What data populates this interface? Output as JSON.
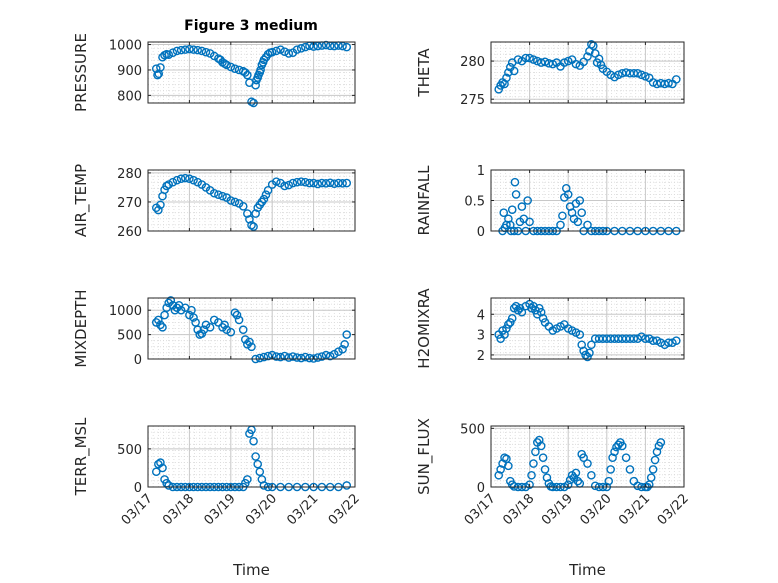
{
  "figure": {
    "title": "Figure 3 medium"
  },
  "colors": {
    "marker": "#0072BD",
    "axis": "#262626",
    "grid": "#d9d9d9"
  },
  "x_axis": {
    "label": "Time",
    "tick_labels": [
      "03/17",
      "03/18",
      "03/19",
      "03/20",
      "03/21",
      "03/22"
    ],
    "range": [
      0,
      5
    ]
  },
  "chart_data": [
    {
      "type": "scatter",
      "name": "PRESSURE",
      "ylabel": "PRESSURE",
      "ylim": [
        770,
        1010
      ],
      "yticks": [
        800,
        900,
        1000
      ],
      "grid": true,
      "title": "Figure 3 medium",
      "x": [
        0.2,
        0.23,
        0.26,
        0.3,
        0.35,
        0.4,
        0.45,
        0.5,
        0.6,
        0.7,
        0.8,
        0.9,
        1.0,
        1.1,
        1.2,
        1.3,
        1.4,
        1.5,
        1.6,
        1.7,
        1.75,
        1.8,
        1.85,
        1.9,
        2.0,
        2.1,
        2.2,
        2.3,
        2.35,
        2.4,
        2.45,
        2.5,
        2.55,
        2.6,
        2.62,
        2.65,
        2.67,
        2.7,
        2.72,
        2.75,
        2.78,
        2.8,
        2.85,
        2.9,
        2.95,
        3.0,
        3.1,
        3.2,
        3.3,
        3.4,
        3.5,
        3.6,
        3.7,
        3.8,
        3.9,
        4.0,
        4.1,
        4.2,
        4.3,
        4.4,
        4.5,
        4.6,
        4.7,
        4.8
      ],
      "y": [
        905,
        880,
        885,
        910,
        950,
        958,
        962,
        960,
        968,
        975,
        978,
        980,
        982,
        980,
        978,
        975,
        970,
        965,
        955,
        945,
        940,
        930,
        925,
        920,
        912,
        905,
        900,
        895,
        890,
        880,
        850,
        775,
        770,
        840,
        860,
        870,
        880,
        890,
        900,
        920,
        930,
        940,
        950,
        962,
        968,
        970,
        975,
        980,
        972,
        965,
        968,
        980,
        985,
        990,
        995,
        992,
        994,
        996,
        998,
        995,
        994,
        996,
        994,
        990
      ]
    },
    {
      "type": "scatter",
      "name": "THETA",
      "ylabel": "THETA",
      "ylim": [
        274.5,
        282.5
      ],
      "yticks": [
        275,
        280
      ],
      "grid": true,
      "x": [
        0.2,
        0.25,
        0.3,
        0.35,
        0.4,
        0.45,
        0.5,
        0.55,
        0.6,
        0.7,
        0.8,
        0.9,
        1.0,
        1.1,
        1.2,
        1.3,
        1.4,
        1.5,
        1.6,
        1.7,
        1.8,
        1.9,
        2.0,
        2.1,
        2.2,
        2.3,
        2.4,
        2.5,
        2.55,
        2.6,
        2.65,
        2.7,
        2.75,
        2.8,
        2.85,
        2.9,
        3.0,
        3.1,
        3.2,
        3.3,
        3.4,
        3.5,
        3.6,
        3.7,
        3.8,
        3.9,
        4.0,
        4.1,
        4.2,
        4.3,
        4.4,
        4.5,
        4.6,
        4.7,
        4.8
      ],
      "y": [
        276.3,
        276.8,
        277.2,
        277.0,
        277.8,
        278.5,
        279.2,
        279.8,
        278.7,
        280.2,
        280.0,
        280.4,
        280.4,
        280.2,
        280.0,
        279.8,
        279.9,
        279.7,
        279.6,
        279.8,
        279.3,
        279.8,
        280.0,
        280.2,
        279.6,
        279.4,
        279.9,
        280.6,
        281.3,
        282.2,
        282.0,
        281.0,
        279.8,
        280.3,
        279.5,
        279.0,
        278.6,
        278.2,
        277.9,
        278.2,
        278.4,
        278.5,
        278.4,
        278.4,
        278.4,
        278.2,
        278.0,
        277.8,
        277.2,
        277.0,
        277.1,
        277.0,
        277.1,
        277.0,
        277.6
      ]
    },
    {
      "type": "scatter",
      "name": "AIR_TEMP",
      "ylabel": "AIR_TEMP",
      "ylim": [
        260,
        281
      ],
      "yticks": [
        260,
        270,
        280
      ],
      "grid": true,
      "x": [
        0.2,
        0.25,
        0.3,
        0.35,
        0.4,
        0.45,
        0.5,
        0.6,
        0.7,
        0.8,
        0.9,
        1.0,
        1.1,
        1.2,
        1.3,
        1.4,
        1.5,
        1.6,
        1.7,
        1.8,
        1.9,
        2.0,
        2.1,
        2.2,
        2.3,
        2.4,
        2.45,
        2.5,
        2.55,
        2.6,
        2.65,
        2.7,
        2.75,
        2.8,
        2.85,
        2.9,
        3.0,
        3.1,
        3.2,
        3.3,
        3.4,
        3.5,
        3.6,
        3.7,
        3.8,
        3.9,
        4.0,
        4.1,
        4.2,
        4.3,
        4.4,
        4.5,
        4.6,
        4.7,
        4.8
      ],
      "y": [
        268.0,
        267.2,
        269.0,
        272.0,
        274.2,
        275.5,
        276.0,
        276.8,
        277.5,
        278.0,
        278.2,
        278.0,
        277.5,
        276.8,
        276.0,
        275.0,
        274.0,
        273.0,
        272.5,
        272.0,
        271.5,
        270.5,
        270.0,
        269.5,
        268.5,
        266.0,
        264.0,
        262.0,
        261.5,
        266.0,
        268.0,
        269.0,
        270.0,
        271.0,
        272.5,
        274.0,
        276.0,
        277.0,
        276.5,
        275.5,
        275.8,
        276.5,
        276.8,
        277.0,
        276.8,
        276.5,
        276.5,
        276.2,
        276.5,
        276.4,
        276.6,
        276.3,
        276.5,
        276.4,
        276.5
      ]
    },
    {
      "type": "scatter",
      "name": "RAINFALL",
      "ylabel": "RAINFALL",
      "ylim": [
        0,
        1
      ],
      "yticks": [
        0,
        0.5,
        1
      ],
      "grid": true,
      "x": [
        0.3,
        0.33,
        0.36,
        0.4,
        0.45,
        0.5,
        0.52,
        0.55,
        0.6,
        0.62,
        0.65,
        0.7,
        0.75,
        0.8,
        0.85,
        0.9,
        0.95,
        1.0,
        1.1,
        1.2,
        1.3,
        1.4,
        1.5,
        1.6,
        1.7,
        1.8,
        1.85,
        1.9,
        1.95,
        2.0,
        2.05,
        2.1,
        2.15,
        2.2,
        2.25,
        2.3,
        2.35,
        2.4,
        2.5,
        2.6,
        2.7,
        2.8,
        2.9,
        3.0,
        3.2,
        3.4,
        3.6,
        3.8,
        4.0,
        4.2,
        4.4,
        4.6,
        4.8
      ],
      "y": [
        0.0,
        0.3,
        0.05,
        0.1,
        0.2,
        0.1,
        0.0,
        0.35,
        0.0,
        0.8,
        0.6,
        0.0,
        0.15,
        0.4,
        0.2,
        0.0,
        0.5,
        0.15,
        0.0,
        0.0,
        0.0,
        0.0,
        0.0,
        0.0,
        0.0,
        0.1,
        0.25,
        0.55,
        0.7,
        0.6,
        0.4,
        0.3,
        0.2,
        0.45,
        0.15,
        0.5,
        0.3,
        0.0,
        0.1,
        0.0,
        0.0,
        0.0,
        0.0,
        0.0,
        0.0,
        0.0,
        0.0,
        0.0,
        0.0,
        0.0,
        0.0,
        0.0,
        0.0
      ]
    },
    {
      "type": "scatter",
      "name": "MIXDEPTH",
      "ylabel": "MIXDEPTH",
      "ylim": [
        0,
        1250
      ],
      "yticks": [
        0,
        500,
        1000
      ],
      "grid": true,
      "x": [
        0.2,
        0.25,
        0.3,
        0.35,
        0.4,
        0.45,
        0.5,
        0.55,
        0.6,
        0.65,
        0.7,
        0.75,
        0.8,
        0.9,
        1.0,
        1.05,
        1.1,
        1.15,
        1.2,
        1.25,
        1.3,
        1.35,
        1.4,
        1.5,
        1.6,
        1.7,
        1.8,
        1.85,
        1.9,
        2.0,
        2.1,
        2.15,
        2.2,
        2.3,
        2.35,
        2.4,
        2.45,
        2.5,
        2.6,
        2.7,
        2.8,
        2.9,
        3.0,
        3.1,
        3.2,
        3.3,
        3.4,
        3.5,
        3.6,
        3.7,
        3.8,
        3.9,
        4.0,
        4.1,
        4.2,
        4.3,
        4.4,
        4.5,
        4.6,
        4.7,
        4.75,
        4.8
      ],
      "y": [
        750,
        800,
        700,
        650,
        900,
        1050,
        1150,
        1200,
        1100,
        1000,
        1050,
        1100,
        1000,
        1050,
        900,
        1000,
        850,
        750,
        600,
        500,
        520,
        600,
        700,
        650,
        800,
        750,
        650,
        700,
        600,
        550,
        950,
        900,
        800,
        600,
        400,
        300,
        350,
        250,
        0,
        20,
        40,
        60,
        80,
        50,
        40,
        60,
        30,
        50,
        30,
        20,
        40,
        20,
        10,
        30,
        50,
        80,
        60,
        100,
        150,
        200,
        300,
        500
      ]
    },
    {
      "type": "scatter",
      "name": "H2OMIXRA",
      "ylabel": "H2OMIXRA",
      "ylim": [
        1.8,
        4.8
      ],
      "yticks": [
        2,
        3,
        4
      ],
      "grid": true,
      "x": [
        0.2,
        0.25,
        0.3,
        0.35,
        0.4,
        0.45,
        0.5,
        0.55,
        0.6,
        0.65,
        0.7,
        0.75,
        0.8,
        0.9,
        1.0,
        1.05,
        1.1,
        1.15,
        1.2,
        1.25,
        1.3,
        1.35,
        1.4,
        1.5,
        1.6,
        1.7,
        1.8,
        1.9,
        2.0,
        2.1,
        2.2,
        2.3,
        2.35,
        2.4,
        2.45,
        2.5,
        2.55,
        2.6,
        2.7,
        2.8,
        2.9,
        3.0,
        3.1,
        3.2,
        3.3,
        3.4,
        3.5,
        3.6,
        3.7,
        3.8,
        3.9,
        4.0,
        4.1,
        4.2,
        4.3,
        4.4,
        4.5,
        4.6,
        4.7,
        4.8
      ],
      "y": [
        3.0,
        2.8,
        3.2,
        3.0,
        3.3,
        3.5,
        3.6,
        3.8,
        4.3,
        4.4,
        4.2,
        4.3,
        4.1,
        4.4,
        4.5,
        4.3,
        4.4,
        4.2,
        4.0,
        4.3,
        4.1,
        3.8,
        3.6,
        3.4,
        3.2,
        3.3,
        3.4,
        3.5,
        3.3,
        3.2,
        3.1,
        3.0,
        2.5,
        2.2,
        2.0,
        1.9,
        2.1,
        2.5,
        2.8,
        2.8,
        2.8,
        2.8,
        2.8,
        2.8,
        2.8,
        2.8,
        2.8,
        2.8,
        2.8,
        2.8,
        2.9,
        2.8,
        2.8,
        2.7,
        2.7,
        2.6,
        2.5,
        2.6,
        2.6,
        2.7
      ]
    },
    {
      "type": "scatter",
      "name": "TERR_MSL",
      "ylabel": "TERR_MSL",
      "ylim": [
        0,
        800
      ],
      "yticks": [
        0,
        500
      ],
      "grid": true,
      "x": [
        0.2,
        0.25,
        0.3,
        0.35,
        0.4,
        0.45,
        0.5,
        0.6,
        0.7,
        0.8,
        0.9,
        1.0,
        1.1,
        1.2,
        1.3,
        1.4,
        1.5,
        1.6,
        1.7,
        1.8,
        1.9,
        2.0,
        2.1,
        2.2,
        2.3,
        2.35,
        2.4,
        2.45,
        2.5,
        2.55,
        2.6,
        2.65,
        2.7,
        2.75,
        2.8,
        2.9,
        3.0,
        3.2,
        3.4,
        3.6,
        3.8,
        4.0,
        4.2,
        4.4,
        4.6,
        4.8
      ],
      "y": [
        200,
        300,
        320,
        250,
        100,
        50,
        20,
        0,
        0,
        0,
        0,
        0,
        0,
        0,
        0,
        0,
        0,
        0,
        0,
        0,
        0,
        0,
        0,
        0,
        0,
        50,
        100,
        700,
        750,
        600,
        400,
        300,
        200,
        100,
        20,
        0,
        0,
        0,
        0,
        0,
        0,
        0,
        0,
        0,
        0,
        20
      ]
    },
    {
      "type": "scatter",
      "name": "SUN_FLUX",
      "ylabel": "SUN_FLUX",
      "ylim": [
        0,
        520
      ],
      "yticks": [
        0,
        500
      ],
      "grid": true,
      "x": [
        0.2,
        0.25,
        0.3,
        0.35,
        0.4,
        0.45,
        0.5,
        0.55,
        0.6,
        0.7,
        0.8,
        0.9,
        1.0,
        1.05,
        1.1,
        1.15,
        1.2,
        1.25,
        1.3,
        1.35,
        1.4,
        1.45,
        1.5,
        1.55,
        1.6,
        1.7,
        1.8,
        1.9,
        2.0,
        2.05,
        2.1,
        2.15,
        2.2,
        2.25,
        2.3,
        2.35,
        2.4,
        2.5,
        2.6,
        2.7,
        2.8,
        2.9,
        3.0,
        3.05,
        3.1,
        3.15,
        3.2,
        3.25,
        3.3,
        3.35,
        3.4,
        3.5,
        3.6,
        3.7,
        3.8,
        3.9,
        4.0,
        4.05,
        4.1,
        4.15,
        4.2,
        4.25,
        4.3,
        4.35,
        4.4
      ],
      "y": [
        100,
        150,
        200,
        250,
        240,
        180,
        50,
        20,
        5,
        0,
        0,
        0,
        20,
        100,
        200,
        300,
        380,
        400,
        350,
        250,
        150,
        80,
        30,
        5,
        0,
        0,
        0,
        0,
        20,
        60,
        100,
        80,
        120,
        50,
        30,
        280,
        250,
        200,
        100,
        10,
        0,
        0,
        0,
        50,
        150,
        250,
        300,
        340,
        360,
        380,
        350,
        250,
        150,
        50,
        10,
        0,
        0,
        0,
        20,
        80,
        150,
        230,
        300,
        350,
        380
      ]
    }
  ]
}
